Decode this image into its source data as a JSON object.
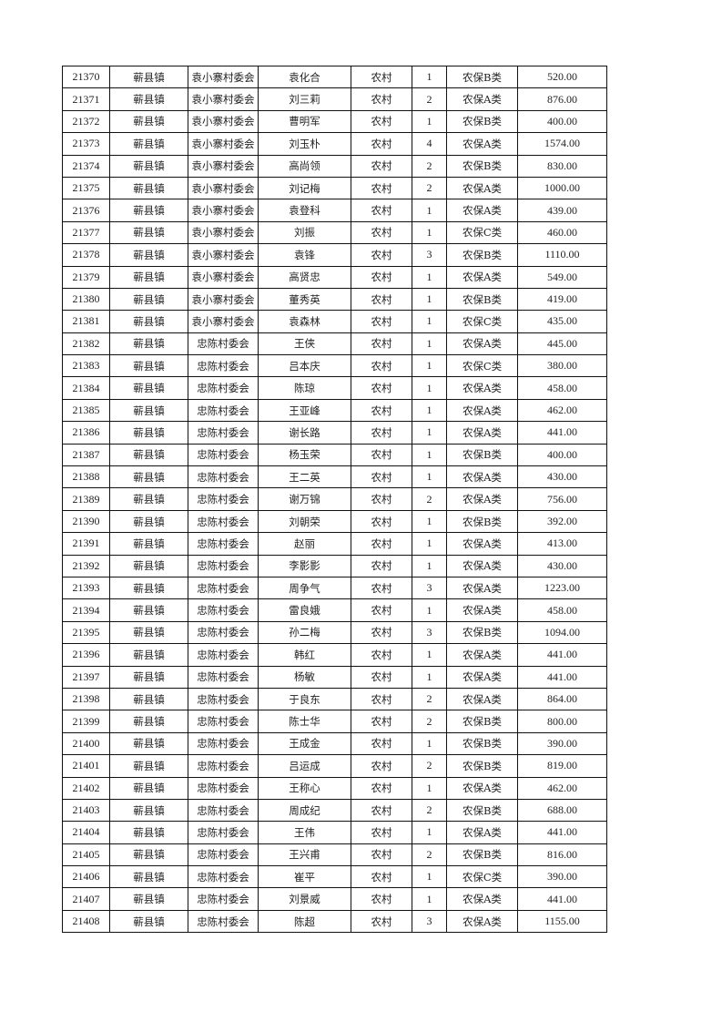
{
  "table": {
    "rows": [
      [
        "21370",
        "蕲县镇",
        "袁小寨村委会",
        "袁化合",
        "农村",
        "1",
        "农保B类",
        "520.00"
      ],
      [
        "21371",
        "蕲县镇",
        "袁小寨村委会",
        "刘三莉",
        "农村",
        "2",
        "农保A类",
        "876.00"
      ],
      [
        "21372",
        "蕲县镇",
        "袁小寨村委会",
        "曹明军",
        "农村",
        "1",
        "农保B类",
        "400.00"
      ],
      [
        "21373",
        "蕲县镇",
        "袁小寨村委会",
        "刘玉朴",
        "农村",
        "4",
        "农保A类",
        "1574.00"
      ],
      [
        "21374",
        "蕲县镇",
        "袁小寨村委会",
        "高尚领",
        "农村",
        "2",
        "农保B类",
        "830.00"
      ],
      [
        "21375",
        "蕲县镇",
        "袁小寨村委会",
        "刘记梅",
        "农村",
        "2",
        "农保A类",
        "1000.00"
      ],
      [
        "21376",
        "蕲县镇",
        "袁小寨村委会",
        "袁登科",
        "农村",
        "1",
        "农保A类",
        "439.00"
      ],
      [
        "21377",
        "蕲县镇",
        "袁小寨村委会",
        "刘振",
        "农村",
        "1",
        "农保C类",
        "460.00"
      ],
      [
        "21378",
        "蕲县镇",
        "袁小寨村委会",
        "袁锋",
        "农村",
        "3",
        "农保B类",
        "1110.00"
      ],
      [
        "21379",
        "蕲县镇",
        "袁小寨村委会",
        "高贤忠",
        "农村",
        "1",
        "农保A类",
        "549.00"
      ],
      [
        "21380",
        "蕲县镇",
        "袁小寨村委会",
        "董秀英",
        "农村",
        "1",
        "农保B类",
        "419.00"
      ],
      [
        "21381",
        "蕲县镇",
        "袁小寨村委会",
        "袁森林",
        "农村",
        "1",
        "农保C类",
        "435.00"
      ],
      [
        "21382",
        "蕲县镇",
        "忠陈村委会",
        "王侠",
        "农村",
        "1",
        "农保A类",
        "445.00"
      ],
      [
        "21383",
        "蕲县镇",
        "忠陈村委会",
        "吕本庆",
        "农村",
        "1",
        "农保C类",
        "380.00"
      ],
      [
        "21384",
        "蕲县镇",
        "忠陈村委会",
        "陈琼",
        "农村",
        "1",
        "农保A类",
        "458.00"
      ],
      [
        "21385",
        "蕲县镇",
        "忠陈村委会",
        "王亚峰",
        "农村",
        "1",
        "农保A类",
        "462.00"
      ],
      [
        "21386",
        "蕲县镇",
        "忠陈村委会",
        "谢长路",
        "农村",
        "1",
        "农保A类",
        "441.00"
      ],
      [
        "21387",
        "蕲县镇",
        "忠陈村委会",
        "杨玉荣",
        "农村",
        "1",
        "农保B类",
        "400.00"
      ],
      [
        "21388",
        "蕲县镇",
        "忠陈村委会",
        "王二英",
        "农村",
        "1",
        "农保A类",
        "430.00"
      ],
      [
        "21389",
        "蕲县镇",
        "忠陈村委会",
        "谢万锦",
        "农村",
        "2",
        "农保A类",
        "756.00"
      ],
      [
        "21390",
        "蕲县镇",
        "忠陈村委会",
        "刘朝荣",
        "农村",
        "1",
        "农保B类",
        "392.00"
      ],
      [
        "21391",
        "蕲县镇",
        "忠陈村委会",
        "赵丽",
        "农村",
        "1",
        "农保A类",
        "413.00"
      ],
      [
        "21392",
        "蕲县镇",
        "忠陈村委会",
        "李影影",
        "农村",
        "1",
        "农保A类",
        "430.00"
      ],
      [
        "21393",
        "蕲县镇",
        "忠陈村委会",
        "周争气",
        "农村",
        "3",
        "农保A类",
        "1223.00"
      ],
      [
        "21394",
        "蕲县镇",
        "忠陈村委会",
        "雷良娥",
        "农村",
        "1",
        "农保A类",
        "458.00"
      ],
      [
        "21395",
        "蕲县镇",
        "忠陈村委会",
        "孙二梅",
        "农村",
        "3",
        "农保B类",
        "1094.00"
      ],
      [
        "21396",
        "蕲县镇",
        "忠陈村委会",
        "韩红",
        "农村",
        "1",
        "农保A类",
        "441.00"
      ],
      [
        "21397",
        "蕲县镇",
        "忠陈村委会",
        "杨敏",
        "农村",
        "1",
        "农保A类",
        "441.00"
      ],
      [
        "21398",
        "蕲县镇",
        "忠陈村委会",
        "于良东",
        "农村",
        "2",
        "农保A类",
        "864.00"
      ],
      [
        "21399",
        "蕲县镇",
        "忠陈村委会",
        "陈士华",
        "农村",
        "2",
        "农保B类",
        "800.00"
      ],
      [
        "21400",
        "蕲县镇",
        "忠陈村委会",
        "王成金",
        "农村",
        "1",
        "农保B类",
        "390.00"
      ],
      [
        "21401",
        "蕲县镇",
        "忠陈村委会",
        "吕运成",
        "农村",
        "2",
        "农保B类",
        "819.00"
      ],
      [
        "21402",
        "蕲县镇",
        "忠陈村委会",
        "王称心",
        "农村",
        "1",
        "农保A类",
        "462.00"
      ],
      [
        "21403",
        "蕲县镇",
        "忠陈村委会",
        "周成纪",
        "农村",
        "2",
        "农保B类",
        "688.00"
      ],
      [
        "21404",
        "蕲县镇",
        "忠陈村委会",
        "王伟",
        "农村",
        "1",
        "农保A类",
        "441.00"
      ],
      [
        "21405",
        "蕲县镇",
        "忠陈村委会",
        "王兴甫",
        "农村",
        "2",
        "农保B类",
        "816.00"
      ],
      [
        "21406",
        "蕲县镇",
        "忠陈村委会",
        "崔平",
        "农村",
        "1",
        "农保C类",
        "390.00"
      ],
      [
        "21407",
        "蕲县镇",
        "忠陈村委会",
        "刘景威",
        "农村",
        "1",
        "农保A类",
        "441.00"
      ],
      [
        "21408",
        "蕲县镇",
        "忠陈村委会",
        "陈超",
        "农村",
        "3",
        "农保A类",
        "1155.00"
      ]
    ]
  }
}
